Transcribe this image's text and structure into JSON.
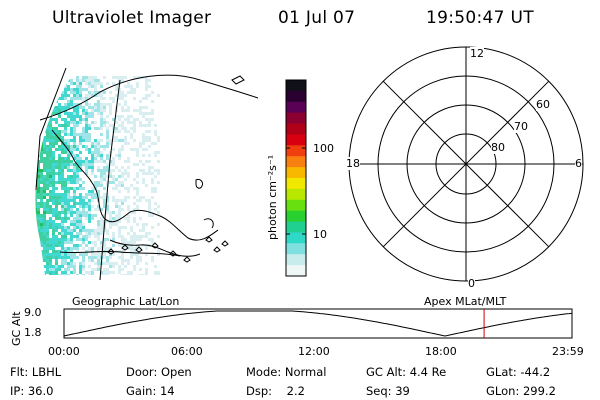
{
  "header": {
    "instrument": "Ultraviolet Imager",
    "date": "01 Jul 07",
    "time": "19:50:47 UT"
  },
  "colorbar": {
    "unit_label": "photon cm⁻²s⁻¹",
    "tick_labels": [
      "100",
      "10"
    ],
    "colors": [
      "#101018",
      "#2a0030",
      "#5a0055",
      "#8b0030",
      "#b00018",
      "#d80010",
      "#f04010",
      "#f88010",
      "#f8b800",
      "#f0e800",
      "#b8e800",
      "#68e010",
      "#28d030",
      "#20d090",
      "#30d8c8",
      "#80e0e0",
      "#c8ecec",
      "#eef6f6"
    ]
  },
  "geo_panel": {
    "title": "Geographic Lat/Lon",
    "aurora_colors": [
      "#20c060",
      "#40d0a0",
      "#40d8d0",
      "#a0e4e8",
      "#d8eef0"
    ]
  },
  "polar_panel": {
    "title": "Apex MLat/MLT",
    "mlt_labels": [
      "12",
      "18",
      "6",
      "0"
    ],
    "mlat_labels": [
      "60",
      "70",
      "80"
    ]
  },
  "altitude_plot": {
    "ylabel": "GC Alt",
    "y_ticks": [
      "9.0",
      "1.8"
    ],
    "x_ticks": [
      "00:00",
      "06:00",
      "12:00",
      "18:00",
      "23:59"
    ],
    "current_time_color": "#d00000"
  },
  "info": {
    "flt_label": "Flt:",
    "flt_value": "LBHL",
    "door_label": "Door:",
    "door_value": "Open",
    "mode_label": "Mode:",
    "mode_value": "Normal",
    "gcalt_label": "GC Alt:",
    "gcalt_value": "4.4 Re",
    "glat_label": "GLat:",
    "glat_value": "-44.2",
    "ip_label": "IP:",
    "ip_value": "36.0",
    "gain_label": "Gain:",
    "gain_value": "14",
    "dsp_label": "Dsp:",
    "dsp_value": "2.2",
    "seq_label": "Seq:",
    "seq_value": "39",
    "glon_label": "GLon:",
    "glon_value": "299.2"
  }
}
